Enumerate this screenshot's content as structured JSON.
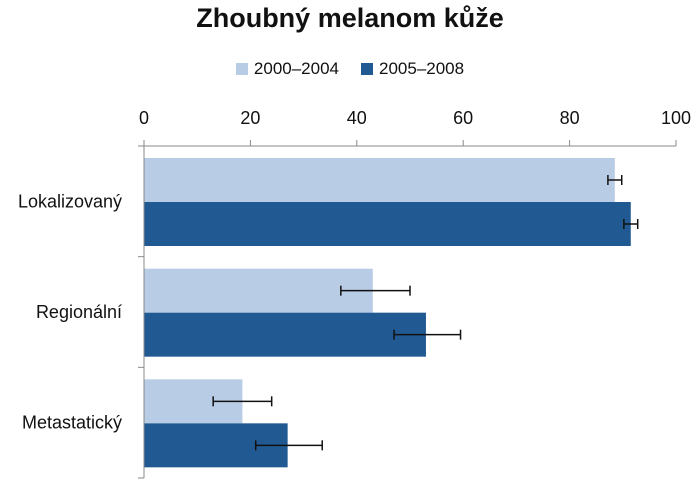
{
  "chart_data": {
    "type": "bar",
    "orientation": "horizontal",
    "title": "Zhoubný melanom kůže",
    "categories": [
      "Lokalizovaný",
      "Regionální",
      "Metastatický"
    ],
    "series": [
      {
        "name": "2000–2004",
        "color": "#b9cce6",
        "values": [
          88.5,
          43,
          18.5
        ],
        "error_low": [
          87.2,
          37,
          13
        ],
        "error_high": [
          89.8,
          50,
          24
        ]
      },
      {
        "name": "2005–2008",
        "color": "#215a92",
        "values": [
          91.5,
          53,
          27
        ],
        "error_low": [
          90.2,
          47,
          21
        ],
        "error_high": [
          92.8,
          59.5,
          33.5
        ]
      }
    ],
    "xlim": [
      0,
      100
    ],
    "xticks": [
      "0",
      "20",
      "40",
      "60",
      "80",
      "100"
    ],
    "xaxis_position": "top",
    "legend_position": "top-center",
    "grid": false
  }
}
